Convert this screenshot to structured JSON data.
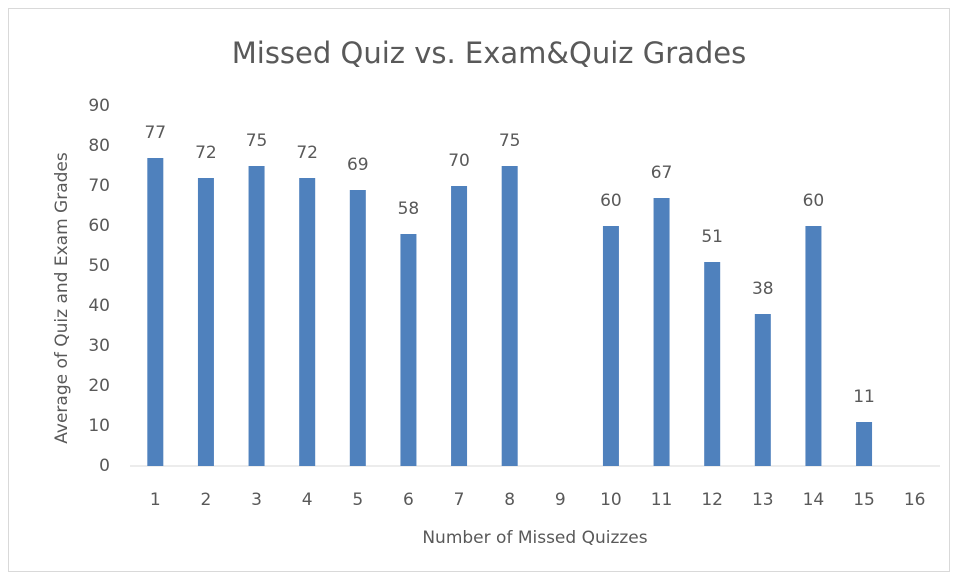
{
  "chart_data": {
    "type": "bar",
    "title": "Missed Quiz vs. Exam&Quiz Grades",
    "x_label": "Number of Missed Quizzes",
    "y_label": "Average of Quiz and Exam Grades",
    "categories": [
      "1",
      "2",
      "3",
      "4",
      "5",
      "6",
      "7",
      "8",
      "9",
      "10",
      "11",
      "12",
      "13",
      "14",
      "15",
      "16"
    ],
    "values": [
      77,
      72,
      75,
      72,
      69,
      58,
      70,
      75,
      null,
      60,
      67,
      51,
      38,
      60,
      11,
      null
    ],
    "color": "#4f81bd",
    "ylim": [
      0,
      90
    ],
    "yticks": [
      0,
      10,
      20,
      30,
      40,
      50,
      60,
      70,
      80,
      90
    ],
    "grid": false
  }
}
